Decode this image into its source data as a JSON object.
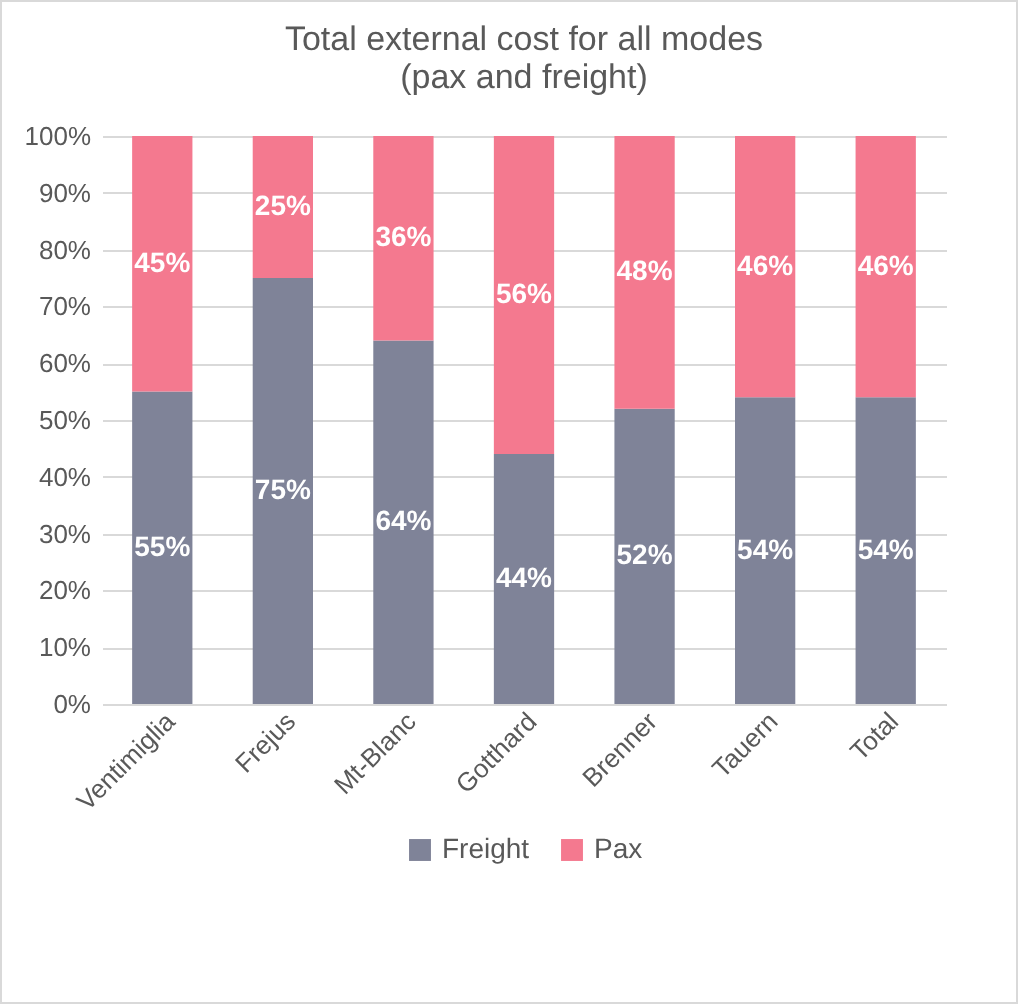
{
  "chart_data": {
    "type": "bar",
    "title": "Total external cost for all modes\n(pax and freight)",
    "stacked": true,
    "categories": [
      "Ventimiglia",
      "Frejus",
      "Mt-Blanc",
      "Gotthard",
      "Brenner",
      "Tauern",
      "Total"
    ],
    "series": [
      {
        "name": "Freight",
        "color": "#7f8398",
        "values": [
          55,
          75,
          64,
          44,
          52,
          54,
          54
        ],
        "value_labels": [
          "55%",
          "75%",
          "64%",
          "44%",
          "52%",
          "54%",
          "54%"
        ]
      },
      {
        "name": "Pax",
        "color": "#f4798f",
        "values": [
          45,
          25,
          36,
          56,
          48,
          46,
          46
        ],
        "value_labels": [
          "45%",
          "25%",
          "36%",
          "56%",
          "48%",
          "46%",
          "46%"
        ]
      }
    ],
    "ylim": [
      0,
      100
    ],
    "yticks": [
      {
        "value": 0,
        "label": "0%"
      },
      {
        "value": 10,
        "label": "10%"
      },
      {
        "value": 20,
        "label": "20%"
      },
      {
        "value": 30,
        "label": "30%"
      },
      {
        "value": 40,
        "label": "40%"
      },
      {
        "value": 50,
        "label": "50%"
      },
      {
        "value": 60,
        "label": "60%"
      },
      {
        "value": 70,
        "label": "70%"
      },
      {
        "value": 80,
        "label": "80%"
      },
      {
        "value": 90,
        "label": "90%"
      },
      {
        "value": 100,
        "label": "100%"
      }
    ],
    "grid": "y",
    "legend": "bottom"
  }
}
